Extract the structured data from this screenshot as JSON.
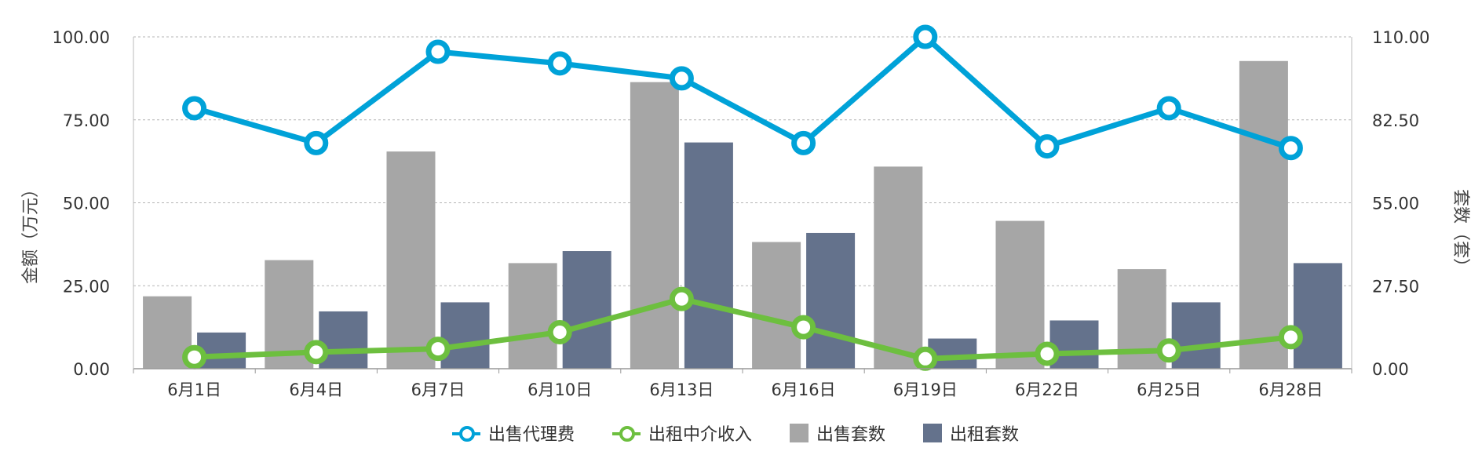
{
  "chart_data": {
    "type": "bar",
    "categories": [
      "6月1日",
      "6月4日",
      "6月7日",
      "6月10日",
      "6月13日",
      "6月16日",
      "6月19日",
      "6月22日",
      "6月25日",
      "6月28日"
    ],
    "y_left": {
      "label": "金额（万元）",
      "lim": [
        0,
        100
      ],
      "ticks": [
        "0.00",
        "25.00",
        "50.00",
        "75.00",
        "100.00"
      ]
    },
    "y_right": {
      "label": "套数（套）",
      "lim": [
        0,
        110
      ],
      "ticks": [
        "0.00",
        "27.50",
        "55.00",
        "82.50",
        "110.00"
      ]
    },
    "series": [
      {
        "name": "出售套数",
        "kind": "bar",
        "axis": "right",
        "color": "#a6a6a6",
        "values": [
          24,
          36,
          72,
          35,
          95,
          42,
          67,
          49,
          33,
          102
        ]
      },
      {
        "name": "出租套数",
        "kind": "bar",
        "axis": "right",
        "color": "#64728c",
        "values": [
          12,
          19,
          22,
          39,
          75,
          45,
          10,
          16,
          22,
          35
        ]
      },
      {
        "name": "出售代理费",
        "kind": "line",
        "axis": "left",
        "color": "#00a2d8",
        "values": [
          78.5,
          68,
          95.5,
          92,
          87.5,
          68,
          100,
          67,
          78.5,
          66.5
        ]
      },
      {
        "name": "出租中介收入",
        "kind": "line",
        "axis": "left",
        "color": "#6dbf3f",
        "values": [
          3.5,
          5,
          6,
          11,
          21,
          12.5,
          3,
          4.5,
          5.5,
          9.5
        ]
      }
    ],
    "grid": true,
    "legend_position": "bottom-center"
  }
}
